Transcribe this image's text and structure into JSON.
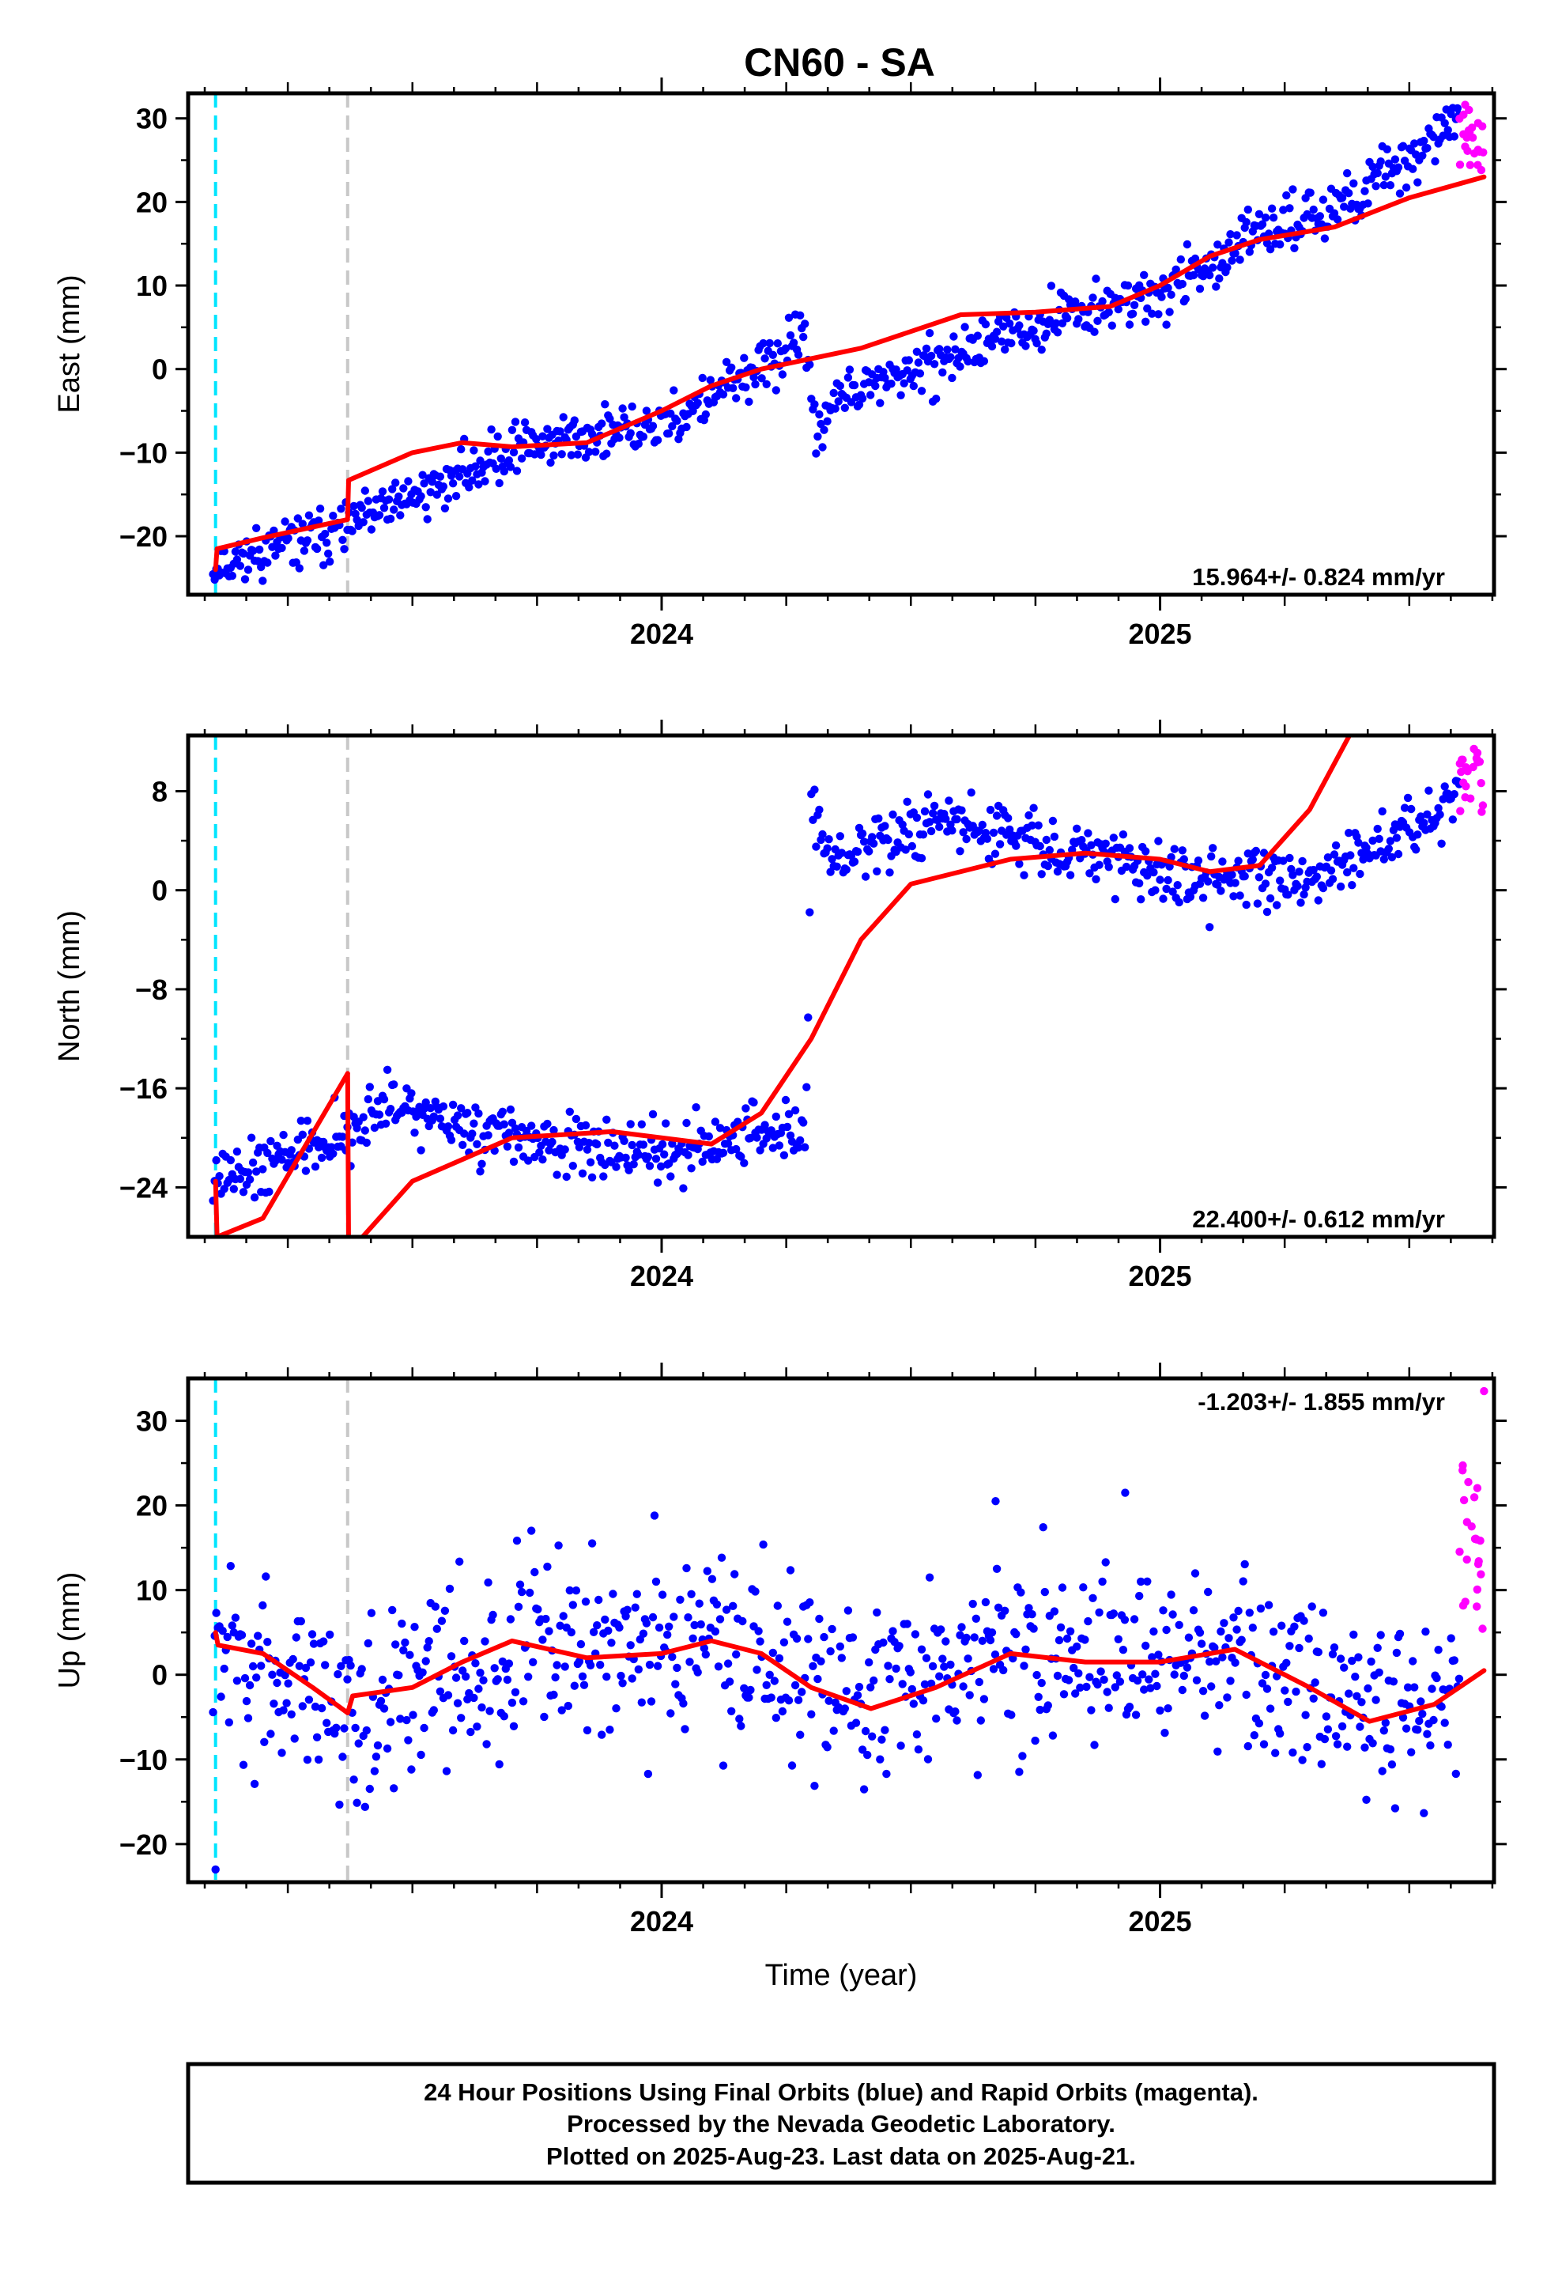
{
  "page": {
    "title": "CN60 - SA"
  },
  "chart_data": [
    {
      "type": "scatter",
      "ylabel": "East (mm)",
      "xlabel": "",
      "x_range": [
        2023.05,
        2025.67
      ],
      "ylim": [
        -27,
        33
      ],
      "y_ticks": [
        30,
        20,
        10,
        0,
        -10,
        -20
      ],
      "y_tick_labels": [
        "30",
        "20",
        "10",
        "0",
        "−10",
        "−20"
      ],
      "x_tick_labels": [
        "2024",
        "2025"
      ],
      "rate_label": "15.964+/- 0.824 mm/yr",
      "rate_position": "bottom-right",
      "steps": [
        {
          "x": 2023.105,
          "color": "#00e5ff"
        },
        {
          "x": 2023.37,
          "color": "#c8c8c8"
        }
      ],
      "final_orbits": {
        "color": "#0000ff",
        "start": 2023.1,
        "end": 2025.6,
        "anchors": [
          [
            2023.1,
            -23.5
          ],
          [
            2023.37,
            -19
          ],
          [
            2023.72,
            -9
          ],
          [
            2024.0,
            -7
          ],
          [
            2024.29,
            3.5
          ],
          [
            2024.31,
            -8
          ],
          [
            2024.34,
            -4
          ],
          [
            2024.8,
            6.5
          ],
          [
            2025.0,
            9
          ],
          [
            2025.2,
            16
          ],
          [
            2025.4,
            21
          ],
          [
            2025.6,
            30
          ]
        ],
        "scatter_mm": 1.5,
        "count": 780,
        "seed": 11
      },
      "rapid_orbits": {
        "color": "#ff00ff",
        "start": 2025.6,
        "end": 2025.65,
        "min": 23.5,
        "max": 32,
        "count": 22,
        "seed": 12
      },
      "model": {
        "color": "#ff0000",
        "segments": [
          [
            [
              2023.105,
              -24
            ],
            [
              2023.108,
              -21.5
            ],
            [
              2023.2,
              -20.2
            ],
            [
              2023.37,
              -18
            ]
          ],
          [
            [
              2023.37,
              -17.8
            ],
            [
              2023.372,
              -13.3
            ],
            [
              2023.5,
              -10
            ],
            [
              2023.6,
              -8.8
            ],
            [
              2023.7,
              -9.3
            ],
            [
              2023.85,
              -8.8
            ],
            [
              2024.0,
              -5
            ],
            [
              2024.1,
              -2
            ],
            [
              2024.2,
              0
            ],
            [
              2024.4,
              2.5
            ],
            [
              2024.6,
              6.5
            ],
            [
              2024.75,
              6.8
            ],
            [
              2024.9,
              7.5
            ],
            [
              2025.0,
              10
            ],
            [
              2025.1,
              13.5
            ],
            [
              2025.2,
              15.5
            ],
            [
              2025.35,
              17
            ],
            [
              2025.5,
              20.5
            ],
            [
              2025.65,
              23
            ]
          ]
        ]
      }
    },
    {
      "type": "scatter",
      "ylabel": "North (mm)",
      "xlabel": "",
      "x_range": [
        2023.05,
        2025.67
      ],
      "ylim": [
        -28,
        12.5
      ],
      "y_ticks": [
        8,
        0,
        -8,
        -16,
        -24
      ],
      "y_tick_labels": [
        "8",
        "0",
        "−8",
        "−16",
        "−24"
      ],
      "x_tick_labels": [
        "2024",
        "2025"
      ],
      "rate_label": "22.400+/- 0.612 mm/yr",
      "rate_position": "bottom-right",
      "steps": [
        {
          "x": 2023.105,
          "color": "#00e5ff"
        },
        {
          "x": 2023.37,
          "color": "#c8c8c8"
        }
      ],
      "final_orbits": {
        "color": "#0000ff",
        "start": 2023.1,
        "end": 2025.6,
        "anchors": [
          [
            2023.1,
            -23
          ],
          [
            2023.3,
            -21
          ],
          [
            2023.45,
            -17.5
          ],
          [
            2023.65,
            -19.5
          ],
          [
            2023.9,
            -21.5
          ],
          [
            2024.1,
            -20.5
          ],
          [
            2024.29,
            -19
          ],
          [
            2024.3,
            7
          ],
          [
            2024.34,
            2
          ],
          [
            2024.55,
            5.5
          ],
          [
            2024.75,
            4
          ],
          [
            2024.9,
            2
          ],
          [
            2025.1,
            1
          ],
          [
            2025.3,
            0.5
          ],
          [
            2025.4,
            3
          ],
          [
            2025.6,
            7.5
          ]
        ],
        "scatter_mm": 1.2,
        "count": 780,
        "seed": 21
      },
      "rapid_orbits": {
        "color": "#ff00ff",
        "start": 2025.6,
        "end": 2025.65,
        "min": 6,
        "max": 11.5,
        "count": 22,
        "seed": 22
      },
      "model": {
        "color": "#ff0000",
        "segments": [
          [
            [
              2023.105,
              -23.5
            ],
            [
              2023.108,
              -28
            ],
            [
              2023.2,
              -26.5
            ],
            [
              2023.37,
              -14.8
            ]
          ],
          [
            [
              2023.37,
              -14.8
            ],
            [
              2023.372,
              -28.5
            ]
          ],
          [
            [
              2023.4,
              -28
            ],
            [
              2023.5,
              -23.5
            ],
            [
              2023.7,
              -20
            ],
            [
              2023.9,
              -19.5
            ],
            [
              2024.1,
              -20.5
            ],
            [
              2024.2,
              -18
            ],
            [
              2024.3,
              -12
            ],
            [
              2024.4,
              -4
            ],
            [
              2024.5,
              0.5
            ],
            [
              2024.7,
              2.5
            ],
            [
              2024.85,
              3
            ],
            [
              2025.0,
              2.5
            ],
            [
              2025.1,
              1.5
            ],
            [
              2025.2,
              2
            ],
            [
              2025.3,
              6.5
            ],
            [
              2025.38,
              12.5
            ]
          ]
        ]
      }
    },
    {
      "type": "scatter",
      "ylabel": "Up (mm)",
      "xlabel": "Time (year)",
      "x_range": [
        2023.05,
        2025.67
      ],
      "ylim": [
        -24.5,
        35
      ],
      "y_ticks": [
        30,
        20,
        10,
        0,
        -10,
        -20
      ],
      "y_tick_labels": [
        "30",
        "20",
        "10",
        "0",
        "−10",
        "−20"
      ],
      "x_tick_labels": [
        "2024",
        "2025"
      ],
      "rate_label": "-1.203+/- 1.855 mm/yr",
      "rate_position": "top-right",
      "steps": [
        {
          "x": 2023.105,
          "color": "#00e5ff"
        },
        {
          "x": 2023.37,
          "color": "#c8c8c8"
        }
      ],
      "final_orbits": {
        "color": "#0000ff",
        "start": 2023.1,
        "end": 2025.6,
        "anchors": [
          [
            2023.1,
            3
          ],
          [
            2023.35,
            -4
          ],
          [
            2023.55,
            0
          ],
          [
            2023.75,
            3.5
          ],
          [
            2024.1,
            4
          ],
          [
            2024.4,
            -3
          ],
          [
            2024.65,
            2.5
          ],
          [
            2024.9,
            2
          ],
          [
            2025.15,
            2.5
          ],
          [
            2025.4,
            -5
          ],
          [
            2025.6,
            -1
          ]
        ],
        "scatter_mm": 5.5,
        "count": 780,
        "seed": 31
      },
      "rapid_orbits": {
        "color": "#ff00ff",
        "start": 2025.6,
        "end": 2025.65,
        "min": 5,
        "max": 25,
        "count": 22,
        "seed": 32
      },
      "outliers": [
        [
          2023.105,
          -23
        ],
        [
          2024.67,
          20.5
        ],
        [
          2024.93,
          21.5
        ],
        [
          2025.65,
          33.5
        ]
      ],
      "model": {
        "color": "#ff0000",
        "segments": [
          [
            [
              2023.105,
              5
            ],
            [
              2023.11,
              3.5
            ],
            [
              2023.2,
              2.5
            ],
            [
              2023.3,
              -1.5
            ],
            [
              2023.37,
              -4.5
            ]
          ],
          [
            [
              2023.37,
              -4.5
            ],
            [
              2023.38,
              -2.5
            ],
            [
              2023.5,
              -1.5
            ],
            [
              2023.6,
              1.5
            ],
            [
              2023.7,
              4
            ],
            [
              2023.85,
              2
            ],
            [
              2024.0,
              2.5
            ],
            [
              2024.1,
              4
            ],
            [
              2024.2,
              2.5
            ],
            [
              2024.3,
              -1.5
            ],
            [
              2024.42,
              -4
            ],
            [
              2024.55,
              -1.5
            ],
            [
              2024.7,
              2.5
            ],
            [
              2024.85,
              1.5
            ],
            [
              2025.0,
              1.5
            ],
            [
              2025.15,
              3
            ],
            [
              2025.3,
              -1.5
            ],
            [
              2025.42,
              -5.5
            ],
            [
              2025.55,
              -3.5
            ],
            [
              2025.65,
              0.5
            ]
          ]
        ]
      }
    }
  ],
  "footer": {
    "line1": "24 Hour Positions Using Final Orbits (blue) and Rapid Orbits (magenta).",
    "line2": "Processed by the Nevada Geodetic Laboratory.",
    "line3": "Plotted on 2025-Aug-23. Last data on 2025-Aug-21."
  }
}
